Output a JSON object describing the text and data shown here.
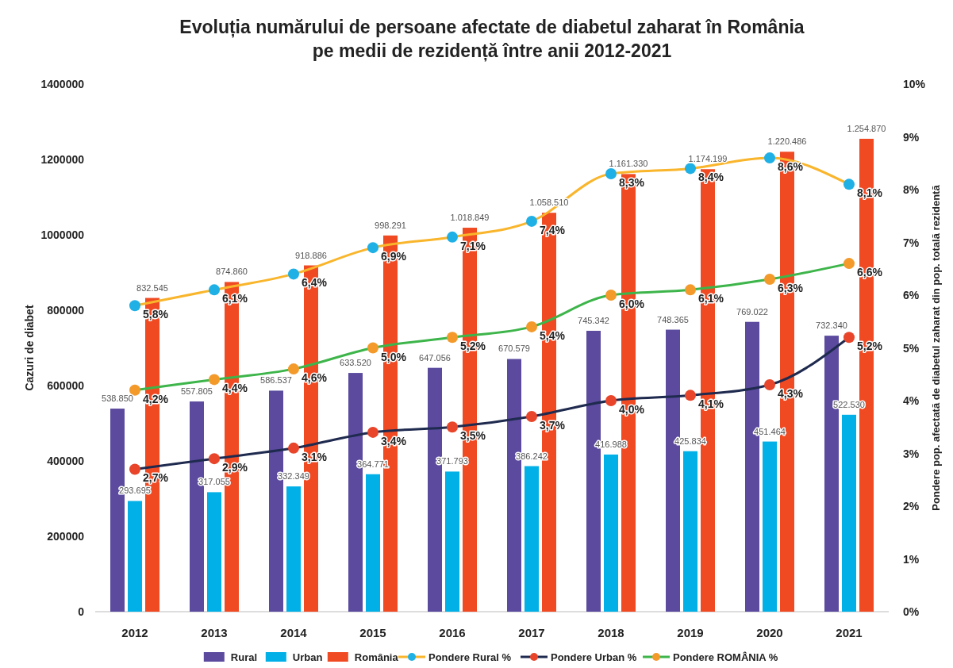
{
  "chart_data": {
    "type": "bar",
    "title": "Evoluția numărului de persoane afectate de diabetul zaharat în România\npe medii de rezidență între anii 2012-2021",
    "ylabel": "Cazuri de diabet",
    "y2label": "Pondere pop. afectată de diabetul zaharat din pop. totală  rezidentă",
    "categories": [
      "2012",
      "2013",
      "2014",
      "2015",
      "2016",
      "2017",
      "2018",
      "2019",
      "2020",
      "2021"
    ],
    "ylim": [
      0,
      1400000
    ],
    "yticks": [
      0,
      200000,
      400000,
      600000,
      800000,
      1000000,
      1200000,
      1400000
    ],
    "y2lim": [
      0,
      10
    ],
    "y2ticks": [
      {
        "value": 0,
        "label": "0%"
      },
      {
        "value": 1,
        "label": "1%"
      },
      {
        "value": 2,
        "label": "2%"
      },
      {
        "value": 3,
        "label": "3%"
      },
      {
        "value": 4,
        "label": "4%"
      },
      {
        "value": 5,
        "label": "5%"
      },
      {
        "value": 6,
        "label": "6%"
      },
      {
        "value": 7,
        "label": "7%"
      },
      {
        "value": 8,
        "label": "8%"
      },
      {
        "value": 9,
        "label": "9%"
      },
      {
        "value": 10,
        "label": "10%"
      }
    ],
    "grid": false,
    "legend": "bottom",
    "marker": "circle",
    "series": [
      {
        "name": "Rural",
        "color": "#5b4a9e",
        "values": [
          538850,
          557805,
          586537,
          633520,
          647056,
          670579,
          745342,
          748365,
          769022,
          732340
        ],
        "value_labels": [
          "538.850",
          "557.805",
          "586.537",
          "633.520",
          "647.056",
          "670.579",
          "745.342",
          "748.365",
          "769.022",
          "732.340"
        ]
      },
      {
        "name": "Urban",
        "color": "#00b0e6",
        "values": [
          293695,
          317055,
          332349,
          364771,
          371793,
          386242,
          416988,
          425834,
          451464,
          522530
        ],
        "value_labels": [
          "293.695",
          "317.055",
          "332.349",
          "364.771",
          "371.793",
          "386.242",
          "416.988",
          "425.834",
          "451.464",
          "522.530"
        ]
      },
      {
        "name": "România",
        "color": "#f04a23",
        "values": [
          832545,
          874860,
          918886,
          998291,
          1018849,
          1058510,
          1161330,
          1174199,
          1220486,
          1254870
        ],
        "value_labels": [
          "832.545",
          "874.860",
          "918.886",
          "998.291",
          "1.018.849",
          "1.058.510",
          "1.161.330",
          "1.174.199",
          "1.220.486",
          "1.254.870"
        ]
      },
      {
        "name": "Pondere Rural %",
        "type": "line",
        "axis": "y2",
        "color": "#f9b52b",
        "colors": [
          "#1fb0e6",
          "#1fb0e6",
          "#1fb0e6",
          "#1fb0e6",
          "#1fb0e6",
          "#1fb0e6",
          "#1fb0e6",
          "#1fb0e6",
          "#1fb0e6",
          "#1fb0e6"
        ],
        "values": [
          5.8,
          6.1,
          6.4,
          6.9,
          7.1,
          7.4,
          8.3,
          8.4,
          8.6,
          8.1
        ],
        "value_labels": [
          "5,8%",
          "6,1%",
          "6,4%",
          "6,9%",
          "7,1%",
          "7,4%",
          "8,3%",
          "8,4%",
          "8,6%",
          "8,1%"
        ]
      },
      {
        "name": "Pondere Urban %",
        "type": "line",
        "axis": "y2",
        "color": "#1f2a4f",
        "colors": [
          "#e8452a",
          "#e8452a",
          "#e8452a",
          "#e8452a",
          "#e8452a",
          "#e8452a",
          "#e8452a",
          "#e8452a",
          "#e8452a",
          "#e8452a"
        ],
        "values": [
          2.7,
          2.9,
          3.1,
          3.4,
          3.5,
          3.7,
          4.0,
          4.1,
          4.3,
          5.2
        ],
        "value_labels": [
          "2,7%",
          "2,9%",
          "3,1%",
          "3,4%",
          "3,5%",
          "3,7%",
          "4,0%",
          "4,1%",
          "4,3%",
          "5,2%"
        ]
      },
      {
        "name": "Pondere ROMÂNIA %",
        "type": "line",
        "axis": "y2",
        "color": "#3db54a",
        "colors": [
          "#f39a2b",
          "#f39a2b",
          "#f39a2b",
          "#f39a2b",
          "#f39a2b",
          "#f39a2b",
          "#f39a2b",
          "#f39a2b",
          "#f39a2b",
          "#f39a2b"
        ],
        "values": [
          4.2,
          4.4,
          4.6,
          5.0,
          5.2,
          5.4,
          6.0,
          6.1,
          6.3,
          6.6
        ],
        "value_labels": [
          "4,2%",
          "4,4%",
          "4,6%",
          "5,0%",
          "5,2%",
          "5,4%",
          "6,0%",
          "6,1%",
          "6,3%",
          "6,6%"
        ]
      }
    ]
  }
}
